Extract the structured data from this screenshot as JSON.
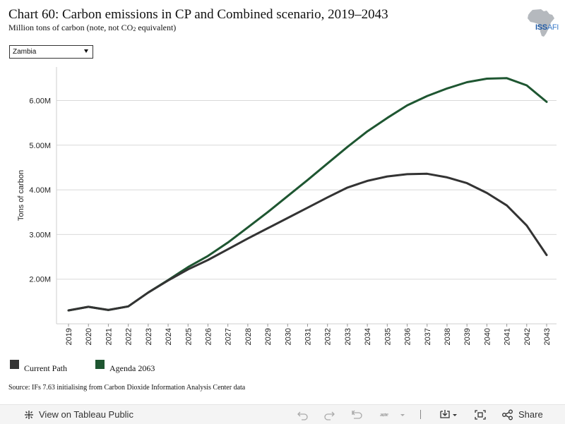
{
  "header": {
    "title": "Chart 60: Carbon emissions in CP and Combined scenario, 2019–2043",
    "subtitle_main": "Million tons of carbon (note, not CO",
    "subtitle_sub": "2",
    "subtitle_end": " equivalent)"
  },
  "logo": {
    "text_main": "ISS",
    "text_sub": "AFI"
  },
  "country_select": {
    "value": "Zambia"
  },
  "chart_data": {
    "type": "line",
    "title": "Chart 60: Carbon emissions in CP and Combined scenario, 2019–2043",
    "ylabel": "Tons of carbon",
    "xlabel": "",
    "ylim": [
      1.0,
      6.75
    ],
    "yticks": [
      2.0,
      3.0,
      4.0,
      5.0,
      6.0
    ],
    "ytick_labels": [
      "2.00M",
      "3.00M",
      "4.00M",
      "5.00M",
      "6.00M"
    ],
    "grid": "horizontal",
    "legend_position": "bottom-left",
    "x": [
      "2019",
      "2020",
      "2021",
      "2022",
      "2023",
      "2024",
      "2025",
      "2026",
      "2027",
      "2028",
      "2029",
      "2030",
      "2031",
      "2032",
      "2033",
      "2034",
      "2035",
      "2036",
      "2037",
      "2038",
      "2039",
      "2040",
      "2041",
      "2042",
      "2043"
    ],
    "series": [
      {
        "name": "Current Path",
        "color": "#333333",
        "values": [
          1.3,
          1.38,
          1.31,
          1.39,
          1.7,
          1.97,
          2.22,
          2.43,
          2.67,
          2.91,
          3.14,
          3.37,
          3.6,
          3.83,
          4.05,
          4.2,
          4.3,
          4.35,
          4.36,
          4.28,
          4.15,
          3.93,
          3.65,
          3.2,
          2.54
        ]
      },
      {
        "name": "Agenda 2063",
        "color": "#1e5631",
        "values": [
          1.3,
          1.38,
          1.31,
          1.39,
          1.7,
          1.98,
          2.27,
          2.52,
          2.82,
          3.16,
          3.5,
          3.86,
          4.22,
          4.59,
          4.96,
          5.31,
          5.61,
          5.89,
          6.1,
          6.27,
          6.41,
          6.49,
          6.5,
          6.34,
          5.97
        ]
      }
    ]
  },
  "source": "Source: IFs 7.63 initialising from Carbon Dioxide Information Analysis Center data",
  "footer": {
    "view_label": "View on Tableau Public",
    "share_label": "Share"
  }
}
